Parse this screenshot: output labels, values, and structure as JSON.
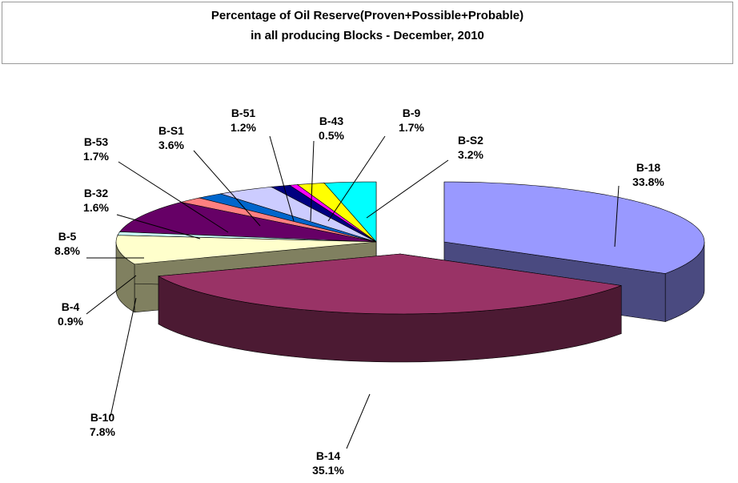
{
  "chart_data": {
    "type": "pie",
    "variant": "3d-exploded",
    "title": [
      "Percentage of Oil Reserve(Proven+Possible+Probable)",
      "in all producing Blocks - December, 2010"
    ],
    "slices": [
      {
        "name": "B-18",
        "value": 33.8,
        "label": "33.8%",
        "color": "#9999ff",
        "dark": "#4a4a80"
      },
      {
        "name": "B-14",
        "value": 35.1,
        "label": "35.1%",
        "color": "#993366",
        "dark": "#4c1a33"
      },
      {
        "name": "B-10",
        "value": 7.8,
        "label": "7.8%",
        "color": "#ffffcc",
        "dark": "#808060"
      },
      {
        "name": "B-4",
        "value": 0.9,
        "label": "0.9%",
        "color": "#ccffff",
        "dark": "#608080"
      },
      {
        "name": "B-5",
        "value": 8.8,
        "label": "8.8%",
        "color": "#660066",
        "dark": "#330033"
      },
      {
        "name": "B-32",
        "value": 1.6,
        "label": "1.6%",
        "color": "#ff8080",
        "dark": "#804040"
      },
      {
        "name": "B-53",
        "value": 1.7,
        "label": "1.7%",
        "color": "#0066cc",
        "dark": "#003366"
      },
      {
        "name": "B-S1",
        "value": 3.6,
        "label": "3.6%",
        "color": "#ccccff",
        "dark": "#606080"
      },
      {
        "name": "B-51",
        "value": 1.2,
        "label": "1.2%",
        "color": "#000080",
        "dark": "#000040"
      },
      {
        "name": "B-43",
        "value": 0.5,
        "label": "0.5%",
        "color": "#ff00ff",
        "dark": "#800080"
      },
      {
        "name": "B-9",
        "value": 1.7,
        "label": "1.7%",
        "color": "#ffff00",
        "dark": "#808000"
      },
      {
        "name": "B-S2",
        "value": 3.2,
        "label": "3.2%",
        "color": "#00ffff",
        "dark": "#008080"
      }
    ]
  }
}
